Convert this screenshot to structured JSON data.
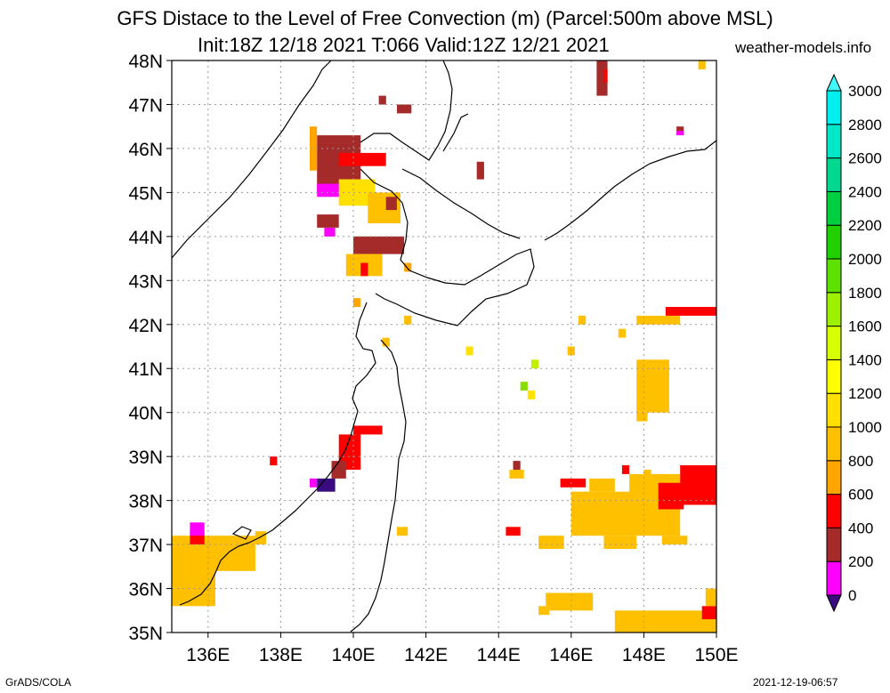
{
  "title": {
    "line1": "GFS Distace to the Level of Free Convection (m) (Parcel:500m above MSL)",
    "line2": "Init:18Z 12/18 2021 T:066 Valid:12Z 12/21 2021"
  },
  "site": "weather-models.info",
  "credit": "GrADS/COLA",
  "timestamp": "2021-12-19-06:57",
  "map": {
    "lat_labels": [
      "48N",
      "47N",
      "46N",
      "45N",
      "44N",
      "43N",
      "42N",
      "41N",
      "40N",
      "39N",
      "38N",
      "37N",
      "36N",
      "35N"
    ],
    "lon_labels": [
      "136E",
      "138E",
      "140E",
      "142E",
      "144E",
      "146E",
      "148E",
      "150E"
    ],
    "lat_range": [
      35,
      48
    ],
    "lon_range": [
      135,
      150
    ],
    "grid": "dotted"
  },
  "colorbar": {
    "levels": [
      "0",
      "200",
      "400",
      "600",
      "800",
      "1000",
      "1200",
      "1400",
      "1600",
      "1800",
      "2000",
      "2200",
      "2400",
      "2600",
      "2800",
      "3000"
    ],
    "colors": [
      "#3a0a80",
      "#ff00ff",
      "#a52a2a",
      "#ff0000",
      "#ffa500",
      "#ffc000",
      "#ffe000",
      "#ffff00",
      "#d8ff00",
      "#9cf000",
      "#5ee000",
      "#20d000",
      "#00d040",
      "#00d890",
      "#00e8c8",
      "#00f0f0",
      "#40f8ff"
    ]
  },
  "field_colors": {
    "purple": "#3a0a80",
    "magenta": "#ff00ff",
    "brown": "#a52a2a",
    "red": "#ff0000",
    "orange": "#ffa500",
    "gold": "#ffc000",
    "yellow": "#ffe000",
    "lime": "#c0f000",
    "green": "#88e000"
  }
}
